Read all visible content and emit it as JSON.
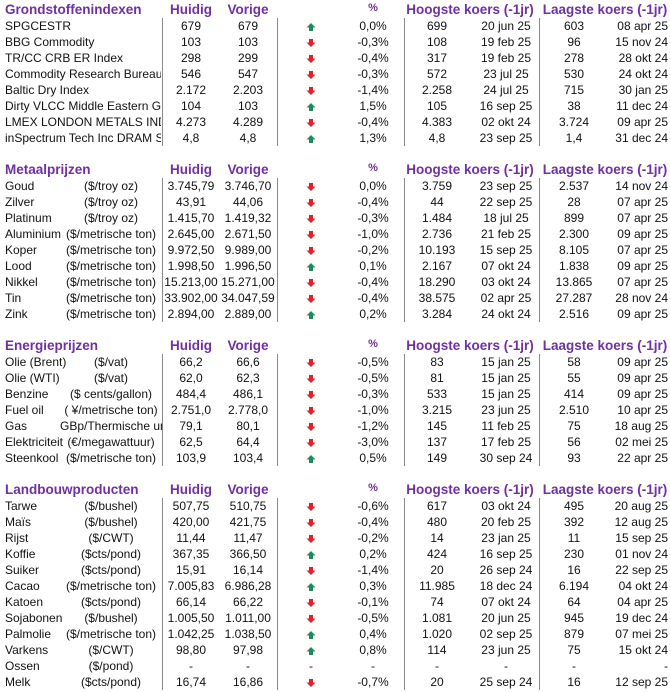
{
  "colors": {
    "header": "#7030a0",
    "up": "#1f8a5f",
    "down": "#e3202b"
  },
  "headers": {
    "huidig": "Huidig",
    "vorige": "Vorige",
    "pct": "%",
    "high": "Hoogste koers (-1jr)",
    "low": "Laagste koers (-1jr)"
  },
  "sections": [
    {
      "title": "Grondstoffenindexen",
      "rows": [
        {
          "name": "SPGCESTR",
          "unit": "",
          "huidig": "679",
          "vorige": "679",
          "trend": "up",
          "pct": "0,0%",
          "high": "699",
          "high_date": "20 jun 25",
          "low": "603",
          "low_date": "08 apr 25"
        },
        {
          "name": "BBG Commodity",
          "unit": "",
          "huidig": "103",
          "vorige": "103",
          "trend": "down",
          "pct": "-0,3%",
          "high": "108",
          "high_date": "19 feb 25",
          "low": "96",
          "low_date": "15 nov 24"
        },
        {
          "name": "TR/CC CRB ER Index",
          "unit": "",
          "huidig": "298",
          "vorige": "299",
          "trend": "down",
          "pct": "-0,4%",
          "high": "317",
          "high_date": "19 feb 25",
          "low": "278",
          "low_date": "28 okt 24"
        },
        {
          "name": "Commodity Research Bureau BLS",
          "unit": "",
          "huidig": "546",
          "vorige": "547",
          "trend": "down",
          "pct": "-0,3%",
          "high": "572",
          "high_date": "23 jul 25",
          "low": "530",
          "low_date": "24 okt 24"
        },
        {
          "name": "Baltic Dry Index",
          "unit": "",
          "huidig": "2.172",
          "vorige": "2.203",
          "trend": "down",
          "pct": "-1,4%",
          "high": "2.258",
          "high_date": "24 jul 25",
          "low": "715",
          "low_date": "30 jan 25"
        },
        {
          "name": "Dirty VLCC Middle Eastern Gulf",
          "unit": "",
          "huidig": "104",
          "vorige": "103",
          "trend": "up",
          "pct": "1,5%",
          "high": "105",
          "high_date": "16 sep 25",
          "low": "38",
          "low_date": "11 dec 24"
        },
        {
          "name": "LMEX LONDON METALS INDEX",
          "unit": "",
          "huidig": "4.273",
          "vorige": "4.289",
          "trend": "down",
          "pct": "-0,4%",
          "high": "4.383",
          "high_date": "02 okt 24",
          "low": "3.724",
          "low_date": "09 apr 25"
        },
        {
          "name": "inSpectrum Tech Inc DRAM Spot",
          "unit": "",
          "huidig": "4,8",
          "vorige": "4,8",
          "trend": "up",
          "pct": "1,3%",
          "high": "4,8",
          "high_date": "23 sep 25",
          "low": "1,4",
          "low_date": "31 dec 24"
        }
      ]
    },
    {
      "title": "Metaalprijzen",
      "rows": [
        {
          "name": "Goud",
          "unit": "($/troy oz)",
          "huidig": "3.745,79",
          "vorige": "3.746,70",
          "trend": "down",
          "pct": "0,0%",
          "high": "3.759",
          "high_date": "23 sep 25",
          "low": "2.537",
          "low_date": "14 nov 24"
        },
        {
          "name": "Zilver",
          "unit": "($/troy oz)",
          "huidig": "43,91",
          "vorige": "44,06",
          "trend": "down",
          "pct": "-0,4%",
          "high": "44",
          "high_date": "22 sep 25",
          "low": "28",
          "low_date": "07 apr 25"
        },
        {
          "name": "Platinum",
          "unit": "($/troy oz)",
          "huidig": "1.415,70",
          "vorige": "1.419,32",
          "trend": "down",
          "pct": "-0,3%",
          "high": "1.484",
          "high_date": "18 jul 25",
          "low": "899",
          "low_date": "07 apr 25"
        },
        {
          "name": "Aluminium",
          "unit": "($/metrische ton)",
          "huidig": "2.645,00",
          "vorige": "2.671,50",
          "trend": "down",
          "pct": "-1,0%",
          "high": "2.736",
          "high_date": "21 feb 25",
          "low": "2.300",
          "low_date": "09 apr 25"
        },
        {
          "name": "Koper",
          "unit": "($/metrische ton)",
          "huidig": "9.972,50",
          "vorige": "9.989,00",
          "trend": "down",
          "pct": "-0,2%",
          "high": "10.193",
          "high_date": "15 sep 25",
          "low": "8.105",
          "low_date": "07 apr 25"
        },
        {
          "name": "Lood",
          "unit": "($/metrische ton)",
          "huidig": "1.998,50",
          "vorige": "1.996,50",
          "trend": "up",
          "pct": "0,1%",
          "high": "2.167",
          "high_date": "07 okt 24",
          "low": "1.838",
          "low_date": "09 apr 25"
        },
        {
          "name": "Nikkel",
          "unit": "($/metrische ton)",
          "huidig": "15.213,00",
          "vorige": "15.271,00",
          "trend": "down",
          "pct": "-0,4%",
          "high": "18.290",
          "high_date": "03 okt 24",
          "low": "13.865",
          "low_date": "07 apr 25"
        },
        {
          "name": "Tin",
          "unit": "($/metrische ton)",
          "huidig": "33.902,00",
          "vorige": "34.047,59",
          "trend": "down",
          "pct": "-0,4%",
          "high": "38.575",
          "high_date": "02 apr 25",
          "low": "27.287",
          "low_date": "28 nov 24"
        },
        {
          "name": "Zink",
          "unit": "($/metrische ton)",
          "huidig": "2.894,00",
          "vorige": "2.889,00",
          "trend": "up",
          "pct": "0,2%",
          "high": "3.284",
          "high_date": "24 okt 24",
          "low": "2.516",
          "low_date": "09 apr 25"
        }
      ]
    },
    {
      "title": "Energieprijzen",
      "rows": [
        {
          "name": "Olie (Brent)",
          "unit": "($/vat)",
          "huidig": "66,2",
          "vorige": "66,6",
          "trend": "down",
          "pct": "-0,5%",
          "high": "83",
          "high_date": "15 jan 25",
          "low": "58",
          "low_date": "09 apr 25"
        },
        {
          "name": "Olie (WTI)",
          "unit": "($/vat)",
          "huidig": "62,0",
          "vorige": "62,3",
          "trend": "down",
          "pct": "-0,5%",
          "high": "81",
          "high_date": "15 jan 25",
          "low": "55",
          "low_date": "09 apr 25"
        },
        {
          "name": "Benzine",
          "unit": "($ cents/gallon)",
          "huidig": "484,4",
          "vorige": "486,1",
          "trend": "down",
          "pct": "-0,3%",
          "high": "533",
          "high_date": "15 jan 25",
          "low": "414",
          "low_date": "09 apr 25"
        },
        {
          "name": "Fuel oil",
          "unit": "( ¥/metrische ton)",
          "huidig": "2.751,0",
          "vorige": "2.778,0",
          "trend": "down",
          "pct": "-1,0%",
          "high": "3.215",
          "high_date": "23 jun 25",
          "low": "2.510",
          "low_date": "10 apr 25"
        },
        {
          "name": "Gas",
          "unit": "GBp/Thermische unit",
          "huidig": "79,1",
          "vorige": "80,1",
          "trend": "down",
          "pct": "-1,2%",
          "high": "145",
          "high_date": "11 feb 25",
          "low": "75",
          "low_date": "18 aug 25"
        },
        {
          "name": "Elektriciteit",
          "unit": "(€/megawattuur)",
          "huidig": "62,5",
          "vorige": "64,4",
          "trend": "down",
          "pct": "-3,0%",
          "high": "137",
          "high_date": "17 feb 25",
          "low": "56",
          "low_date": "02 mei 25"
        },
        {
          "name": "Steenkool",
          "unit": "($/metrische ton)",
          "huidig": "103,9",
          "vorige": "103,4",
          "trend": "up",
          "pct": "0,5%",
          "high": "149",
          "high_date": "30 sep 24",
          "low": "93",
          "low_date": "22 apr 25"
        }
      ]
    },
    {
      "title": "Landbouwproducten",
      "rows": [
        {
          "name": "Tarwe",
          "unit": "($/bushel)",
          "huidig": "507,75",
          "vorige": "510,75",
          "trend": "down",
          "pct": "-0,6%",
          "high": "617",
          "high_date": "03 okt 24",
          "low": "495",
          "low_date": "20 aug 25"
        },
        {
          "name": "Maïs",
          "unit": "($/bushel)",
          "huidig": "420,00",
          "vorige": "421,75",
          "trend": "down",
          "pct": "-0,4%",
          "high": "480",
          "high_date": "20 feb 25",
          "low": "392",
          "low_date": "12 aug 25"
        },
        {
          "name": "Rijst",
          "unit": "($/CWT)",
          "huidig": "11,44",
          "vorige": "11,47",
          "trend": "down",
          "pct": "-0,2%",
          "high": "14",
          "high_date": "23 jan 25",
          "low": "11",
          "low_date": "15 sep 25"
        },
        {
          "name": "Koffie",
          "unit": "($cts/pond)",
          "huidig": "367,35",
          "vorige": "366,50",
          "trend": "up",
          "pct": "0,2%",
          "high": "424",
          "high_date": "16 sep 25",
          "low": "230",
          "low_date": "01 nov 24"
        },
        {
          "name": "Suiker",
          "unit": "($cts/pond)",
          "huidig": "15,91",
          "vorige": "16,14",
          "trend": "down",
          "pct": "-1,4%",
          "high": "20",
          "high_date": "26 sep 24",
          "low": "16",
          "low_date": "22 sep 25"
        },
        {
          "name": "Cacao",
          "unit": "($/metrische ton)",
          "huidig": "7.005,83",
          "vorige": "6.986,28",
          "trend": "up",
          "pct": "0,3%",
          "high": "11.985",
          "high_date": "18 dec 24",
          "low": "6.194",
          "low_date": "04 okt 24"
        },
        {
          "name": "Katoen",
          "unit": "($cts/pond)",
          "huidig": "66,14",
          "vorige": "66,22",
          "trend": "down",
          "pct": "-0,1%",
          "high": "74",
          "high_date": "07 okt 24",
          "low": "64",
          "low_date": "04 apr 25"
        },
        {
          "name": "Sojabonen",
          "unit": "($/bushel)",
          "huidig": "1.005,50",
          "vorige": "1.011,00",
          "trend": "down",
          "pct": "-0,5%",
          "high": "1.081",
          "high_date": "20 jun 25",
          "low": "945",
          "low_date": "19 dec 24"
        },
        {
          "name": "Palmolie",
          "unit": "($/metrische ton)",
          "huidig": "1.042,25",
          "vorige": "1.038,50",
          "trend": "up",
          "pct": "0,4%",
          "high": "1.020",
          "high_date": "02 sep 25",
          "low": "879",
          "low_date": "07 mei 25"
        },
        {
          "name": "Varkens",
          "unit": "($/CWT)",
          "huidig": "98,80",
          "vorige": "97,98",
          "trend": "up",
          "pct": "0,8%",
          "high": "114",
          "high_date": "23 jun 25",
          "low": "75",
          "low_date": "15 okt 24"
        },
        {
          "name": "Ossen",
          "unit": "($/pond)",
          "huidig": "-",
          "vorige": "-",
          "trend": "none",
          "trend_text": "-",
          "pct": "-",
          "high": "-",
          "high_date": "-",
          "low": "-",
          "low_date": "-"
        },
        {
          "name": "Melk",
          "unit": "($cts/pond)",
          "huidig": "16,74",
          "vorige": "16,86",
          "trend": "down",
          "pct": "-0,7%",
          "high": "20",
          "high_date": "25 sep 24",
          "low": "16",
          "low_date": "12 sep 25"
        }
      ]
    }
  ]
}
